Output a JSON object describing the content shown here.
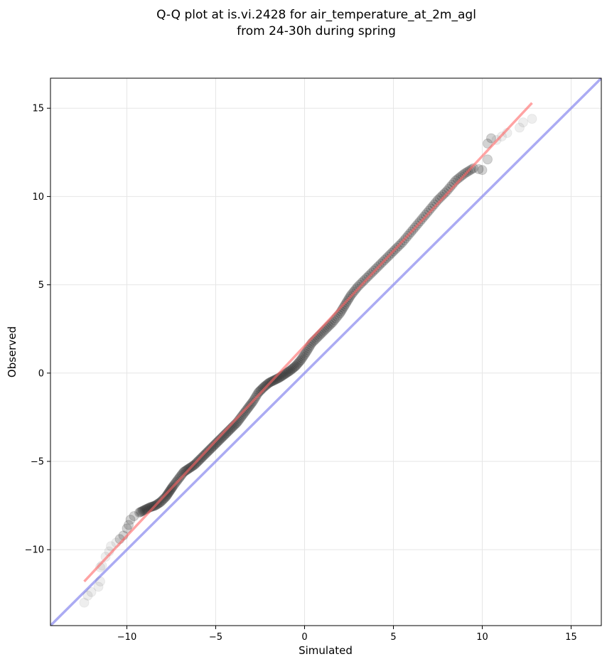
{
  "chart_data": {
    "type": "scatter",
    "title_lines": [
      "Q-Q plot at is.vi.2428 for air_temperature_at_2m_agl",
      "from 24-30h during spring"
    ],
    "xlabel": "Simulated",
    "ylabel": "Observed",
    "xlim": [
      -14.3,
      16.7
    ],
    "ylim": [
      -14.3,
      16.7
    ],
    "xticks": [
      -10,
      -5,
      0,
      5,
      10,
      15
    ],
    "yticks": [
      -10,
      -5,
      0,
      5,
      10,
      15
    ],
    "xtick_labels": [
      "−10",
      "−5",
      "0",
      "5",
      "10",
      "15"
    ],
    "ytick_labels": [
      "−10",
      "−5",
      "0",
      "5",
      "10",
      "15"
    ],
    "grid": true,
    "colors": {
      "points": "#222222",
      "fit_line": "#ff6666",
      "identity_line": "#8888ee"
    },
    "series": [
      {
        "kind": "points",
        "points": [
          [
            -12.4,
            -13.0
          ],
          [
            -12.2,
            -12.6
          ],
          [
            -12.0,
            -12.4
          ],
          [
            -11.6,
            -12.1
          ],
          [
            -11.5,
            -11.8
          ],
          [
            -11.5,
            -11.0
          ],
          [
            -11.4,
            -10.9
          ],
          [
            -11.2,
            -10.4
          ],
          [
            -11.0,
            -10.1
          ],
          [
            -10.9,
            -9.8
          ],
          [
            -10.6,
            -9.6
          ],
          [
            -10.4,
            -9.4
          ],
          [
            -10.2,
            -9.2
          ],
          [
            -10.0,
            -8.8
          ],
          [
            -9.9,
            -8.6
          ],
          [
            -9.8,
            -8.3
          ],
          [
            -9.6,
            -8.1
          ],
          [
            -9.3,
            -7.9
          ],
          [
            -9.0,
            -7.75
          ],
          [
            -8.7,
            -7.6
          ],
          [
            -8.4,
            -7.5
          ],
          [
            -8.1,
            -7.3
          ],
          [
            -7.8,
            -7.0
          ],
          [
            -7.6,
            -6.7
          ],
          [
            -7.4,
            -6.4
          ],
          [
            -7.1,
            -6.0
          ],
          [
            -6.8,
            -5.6
          ],
          [
            -6.5,
            -5.4
          ],
          [
            -6.2,
            -5.2
          ],
          [
            -5.9,
            -4.9
          ],
          [
            -5.6,
            -4.6
          ],
          [
            -5.3,
            -4.3
          ],
          [
            -5.0,
            -4.0
          ],
          [
            -4.7,
            -3.7
          ],
          [
            -4.4,
            -3.4
          ],
          [
            -4.1,
            -3.1
          ],
          [
            -3.8,
            -2.8
          ],
          [
            -3.5,
            -2.4
          ],
          [
            -3.2,
            -2.0
          ],
          [
            -2.9,
            -1.6
          ],
          [
            -2.6,
            -1.1
          ],
          [
            -2.3,
            -0.8
          ],
          [
            -2.0,
            -0.55
          ],
          [
            -1.7,
            -0.4
          ],
          [
            -1.4,
            -0.25
          ],
          [
            -1.1,
            -0.05
          ],
          [
            -0.8,
            0.15
          ],
          [
            -0.5,
            0.4
          ],
          [
            -0.2,
            0.75
          ],
          [
            0.1,
            1.2
          ],
          [
            0.4,
            1.7
          ],
          [
            0.8,
            2.1
          ],
          [
            1.2,
            2.5
          ],
          [
            1.6,
            2.9
          ],
          [
            2.0,
            3.4
          ],
          [
            2.3,
            3.9
          ],
          [
            2.6,
            4.4
          ],
          [
            3.0,
            4.9
          ],
          [
            3.5,
            5.4
          ],
          [
            4.0,
            5.9
          ],
          [
            4.5,
            6.4
          ],
          [
            5.0,
            6.9
          ],
          [
            5.5,
            7.4
          ],
          [
            6.0,
            8.0
          ],
          [
            6.5,
            8.6
          ],
          [
            7.0,
            9.2
          ],
          [
            7.5,
            9.8
          ],
          [
            8.0,
            10.3
          ],
          [
            8.5,
            10.9
          ],
          [
            9.0,
            11.3
          ],
          [
            9.5,
            11.6
          ],
          [
            9.8,
            11.55
          ],
          [
            10.0,
            11.5
          ],
          [
            10.3,
            12.1
          ],
          [
            10.3,
            13.0
          ],
          [
            10.5,
            13.3
          ],
          [
            10.8,
            13.2
          ],
          [
            11.1,
            13.4
          ],
          [
            11.4,
            13.6
          ],
          [
            12.1,
            13.9
          ],
          [
            12.3,
            14.2
          ],
          [
            12.8,
            14.4
          ]
        ]
      },
      {
        "kind": "fit_line",
        "points": [
          [
            -12.4,
            -11.8
          ],
          [
            12.8,
            15.3
          ]
        ]
      },
      {
        "kind": "identity_line",
        "points": [
          [
            -14.3,
            -14.3
          ],
          [
            16.7,
            16.7
          ]
        ]
      }
    ]
  }
}
